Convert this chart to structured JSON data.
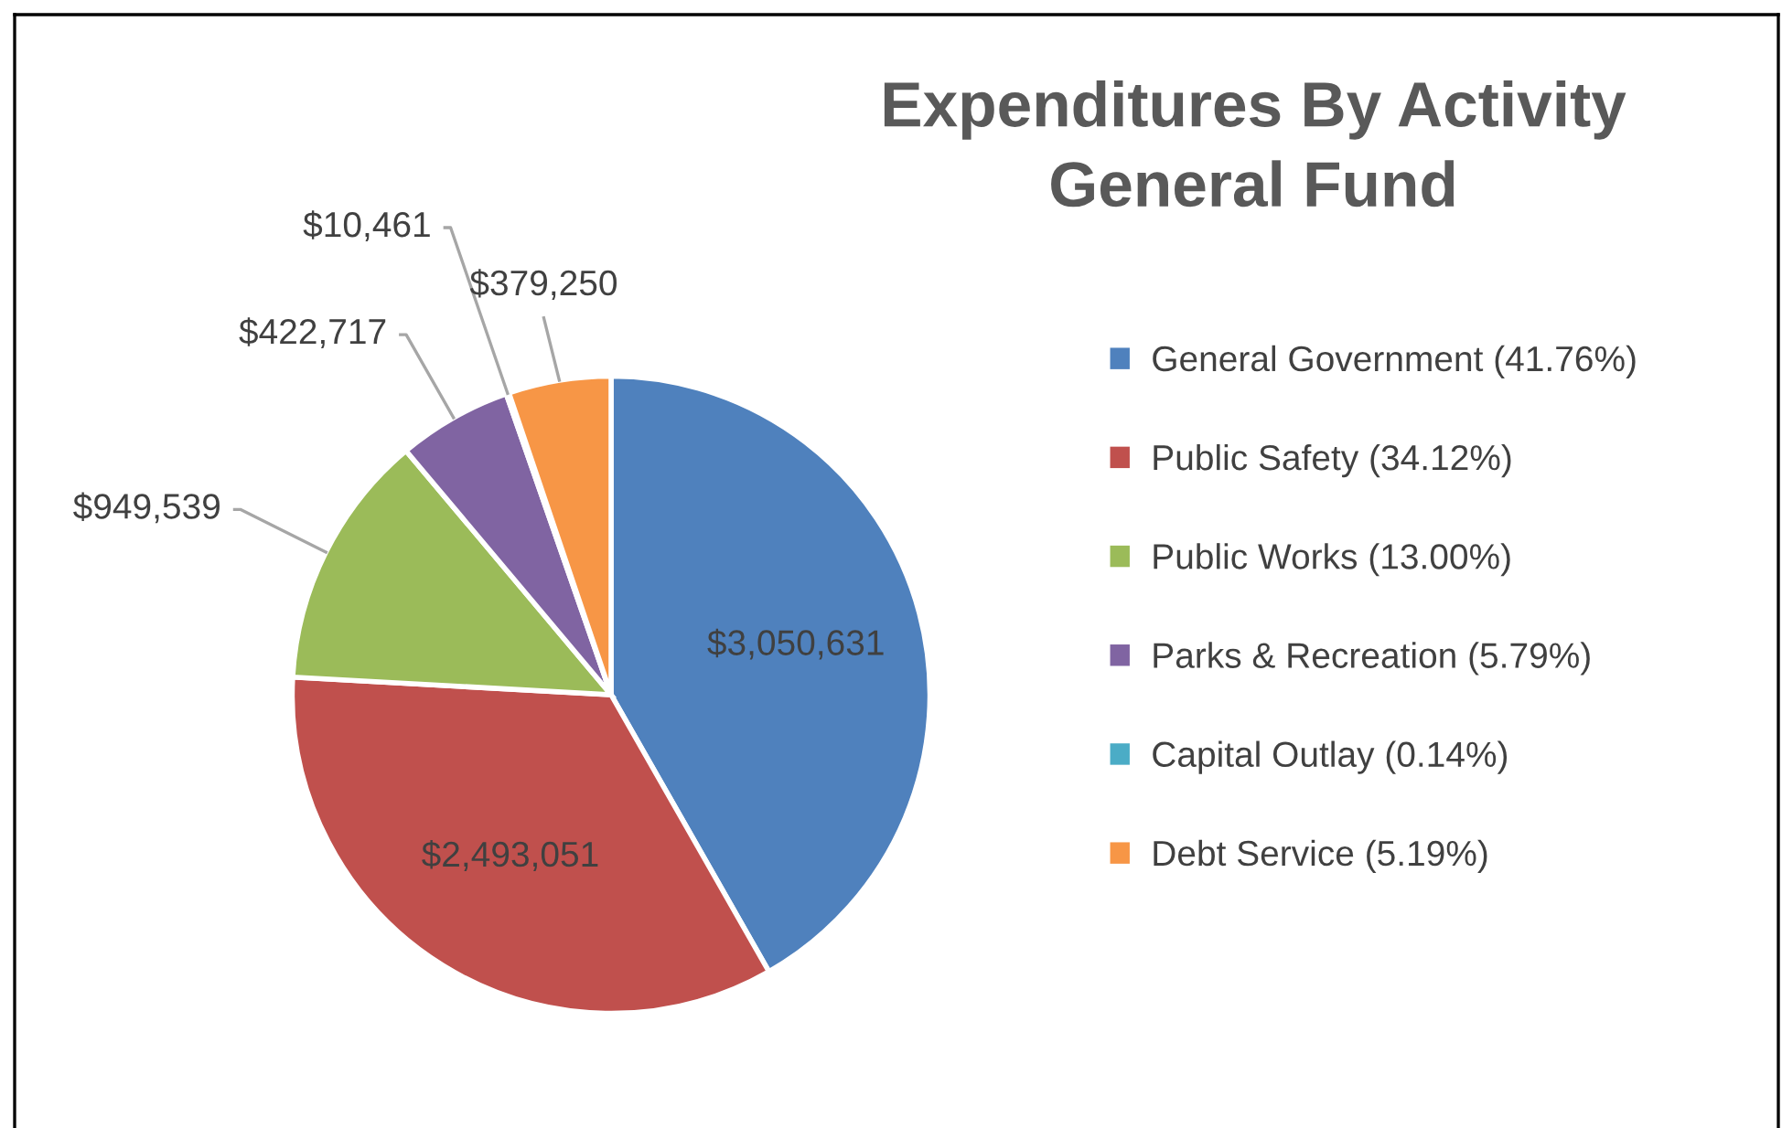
{
  "chart_data": {
    "type": "pie",
    "title": "Expenditures By Activity\nGeneral Fund",
    "categories": [
      "General Government (41.76%)",
      "Public Safety (34.12%)",
      "Public Works (13.00%)",
      "Parks & Recreation (5.79%)",
      "Capital Outlay (0.14%)",
      "Debt Service (5.19%)"
    ],
    "values": [
      3050631,
      2493051,
      949539,
      422717,
      10461,
      379250
    ],
    "value_labels": [
      "$3,050,631",
      "$2,493,051",
      "$949,539",
      "$422,717",
      "$10,461",
      "$379,250"
    ],
    "colors": [
      "#4f81bd",
      "#c0504d",
      "#9bbb59",
      "#8064a2",
      "#4bacc6",
      "#f79646"
    ],
    "legend": "right"
  }
}
